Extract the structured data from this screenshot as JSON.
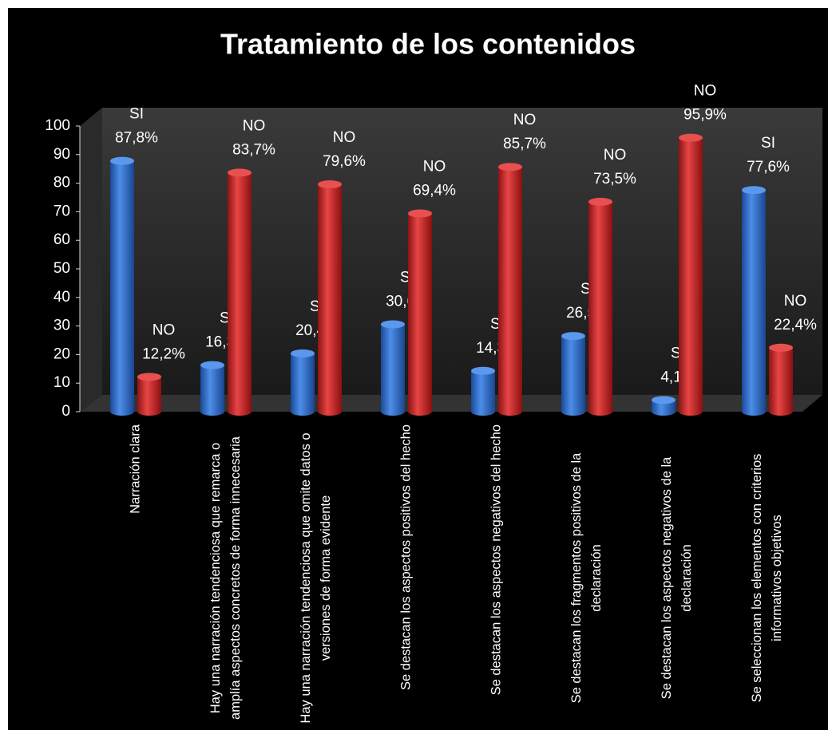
{
  "chart_data": {
    "type": "bar",
    "title": "Tratamiento de los contenidos",
    "categories": [
      "Narración clara",
      "Hay una narración tendenciosa que remarca o amplía aspectos concretos de forma innecesaria",
      "Hay una narración tendenciosa que omite datos o versiones de forma evidente",
      "Se destacan los aspectos positivos del hecho",
      "Se destacan los aspectos negativos del hecho",
      "Se destacan los fragmentos positivos de la declaración",
      "Se destacan los aspectos negativos de la declaración",
      "Se seleccionan los elementos con criterios informativos objetivos"
    ],
    "series": [
      {
        "name": "SI",
        "color": "#2e6fd0",
        "values": [
          87.8,
          16.3,
          20.4,
          30.6,
          14.3,
          26.5,
          4.1,
          77.6
        ],
        "value_labels": [
          "87,8%",
          "16,3%",
          "20,4%",
          "30,6%",
          "14,3%",
          "26,5%",
          "4,1%",
          "77,6%"
        ]
      },
      {
        "name": "NO",
        "color": "#d42a2a",
        "values": [
          12.2,
          83.7,
          79.6,
          69.4,
          85.7,
          73.5,
          95.9,
          22.4
        ],
        "value_labels": [
          "12,2%",
          "83,7%",
          "79,6%",
          "69,4%",
          "85,7%",
          "73,5%",
          "95,9%",
          "22,4%"
        ]
      }
    ],
    "ylim": [
      0,
      100
    ],
    "yticks": [
      0,
      10,
      20,
      30,
      40,
      50,
      60,
      70,
      80,
      90,
      100
    ],
    "grid": false
  }
}
